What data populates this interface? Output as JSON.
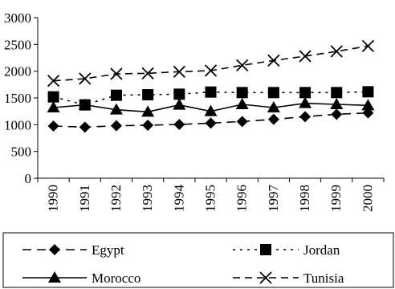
{
  "chart_data": {
    "type": "line",
    "title": "",
    "xlabel": "",
    "ylabel": "",
    "ylim": [
      0,
      3000
    ],
    "yticks": [
      0,
      500,
      1000,
      1500,
      2000,
      2500,
      3000
    ],
    "x": [
      "1990",
      "1991",
      "1992",
      "1993",
      "1994",
      "1995",
      "1996",
      "1997",
      "1998",
      "1999",
      "2000"
    ],
    "grid": false,
    "legend_position": "bottom",
    "series": [
      {
        "name": "Egypt",
        "marker": "diamond",
        "line_style": "long-dash",
        "values": [
          975,
          955,
          980,
          990,
          1005,
          1030,
          1060,
          1100,
          1150,
          1195,
          1220
        ]
      },
      {
        "name": "Jordan",
        "marker": "square",
        "line_style": "dotted",
        "values": [
          1520,
          1370,
          1550,
          1560,
          1570,
          1610,
          1600,
          1600,
          1600,
          1600,
          1615
        ]
      },
      {
        "name": "Morocco",
        "marker": "triangle",
        "line_style": "solid",
        "values": [
          1320,
          1370,
          1280,
          1240,
          1370,
          1250,
          1380,
          1320,
          1400,
          1380,
          1360
        ]
      },
      {
        "name": "Tunisia",
        "marker": "x",
        "line_style": "dash",
        "values": [
          1820,
          1860,
          1950,
          1960,
          1990,
          2010,
          2110,
          2200,
          2280,
          2370,
          2470
        ]
      }
    ]
  }
}
